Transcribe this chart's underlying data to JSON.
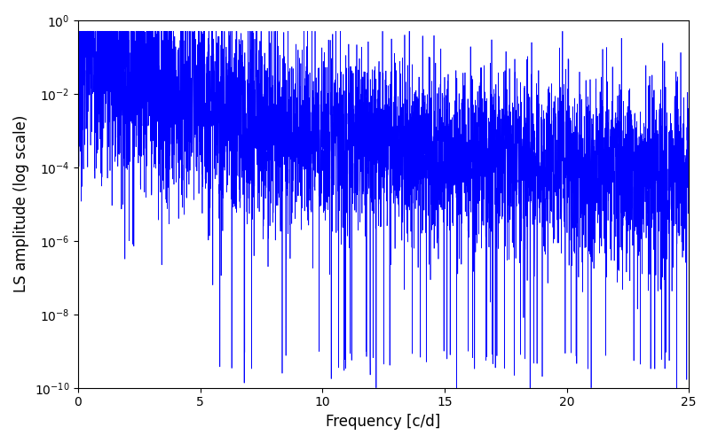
{
  "xlabel": "Frequency [c/d]",
  "ylabel": "LS amplitude (log scale)",
  "xlim": [
    0,
    25
  ],
  "ylim_log": [
    1e-10,
    1.0
  ],
  "line_color": "#0000FF",
  "line_width": 0.5,
  "background_color": "#ffffff",
  "figsize": [
    8.0,
    5.0
  ],
  "dpi": 100,
  "freq_max": 25.0,
  "n_points": 5000,
  "seed": 7
}
